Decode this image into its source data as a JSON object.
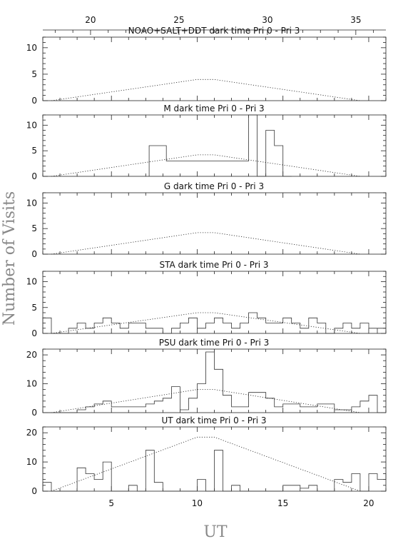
{
  "chart_data": {
    "type": "bar",
    "ylabel": "Number of Visits",
    "xlabel": "UT",
    "x_range": [
      1,
      21
    ],
    "top_axis": {
      "ticks": [
        20,
        25,
        30,
        35
      ],
      "range": [
        17.3,
        36.7
      ]
    },
    "bottom_ticks": [
      5,
      10,
      15,
      20
    ],
    "bin_width": 0.5,
    "panels": [
      {
        "title": "NOAO+SALT+DDT dark time Pri 0 - Pri 3",
        "ylim": [
          0,
          12
        ],
        "yticks": [
          0,
          5,
          10
        ],
        "reference_line": [
          [
            1.5,
            0
          ],
          [
            10,
            4
          ],
          [
            11,
            4
          ],
          [
            19.5,
            0
          ]
        ],
        "bins": []
      },
      {
        "title": "M    dark time Pri 0 - Pri 3",
        "ylim": [
          0,
          12
        ],
        "yticks": [
          0,
          5,
          10
        ],
        "reference_line": [
          [
            1.5,
            0
          ],
          [
            10,
            4.2
          ],
          [
            11,
            4.2
          ],
          [
            19.5,
            0
          ]
        ],
        "bins": [
          [
            7.2,
            6
          ],
          [
            8.2,
            3
          ],
          [
            13,
            12
          ],
          [
            13.5,
            0
          ],
          [
            14,
            9
          ],
          [
            14.5,
            6
          ],
          [
            15,
            0
          ]
        ]
      },
      {
        "title": "G    dark time Pri 0 - Pri 3",
        "ylim": [
          0,
          12
        ],
        "yticks": [
          0,
          5,
          10
        ],
        "reference_line": [
          [
            1.5,
            0
          ],
          [
            10,
            4.2
          ],
          [
            11,
            4.2
          ],
          [
            19.5,
            0
          ]
        ],
        "bins": []
      },
      {
        "title": "STA    dark time Pri 0 - Pri 3",
        "ylim": [
          0,
          12
        ],
        "yticks": [
          0,
          5,
          10
        ],
        "reference_line": [
          [
            1.5,
            0
          ],
          [
            10,
            4
          ],
          [
            11,
            4
          ],
          [
            19.5,
            0
          ]
        ],
        "bins": [
          [
            1,
            3
          ],
          [
            1.5,
            0
          ],
          [
            2.5,
            1
          ],
          [
            3,
            2
          ],
          [
            3.5,
            1
          ],
          [
            4,
            2
          ],
          [
            4.5,
            3
          ],
          [
            5,
            2
          ],
          [
            5.5,
            1
          ],
          [
            6,
            2
          ],
          [
            7,
            1
          ],
          [
            8,
            0
          ],
          [
            8.5,
            1
          ],
          [
            9,
            2
          ],
          [
            9.5,
            3
          ],
          [
            10,
            1
          ],
          [
            10.5,
            2
          ],
          [
            11,
            3
          ],
          [
            11.5,
            2
          ],
          [
            12,
            1
          ],
          [
            12.5,
            2
          ],
          [
            13,
            4
          ],
          [
            13.5,
            3
          ],
          [
            14,
            2
          ],
          [
            15,
            3
          ],
          [
            15.5,
            2
          ],
          [
            16,
            1
          ],
          [
            16.5,
            3
          ],
          [
            17,
            2
          ],
          [
            17.5,
            0
          ],
          [
            18,
            1
          ],
          [
            18.5,
            2
          ],
          [
            19,
            1
          ],
          [
            19.5,
            2
          ],
          [
            20,
            1
          ],
          [
            20.5,
            0
          ],
          [
            20.5,
            1
          ]
        ]
      },
      {
        "title": "PSU    dark time Pri 0 - Pri 3",
        "ylim": [
          0,
          22
        ],
        "yticks": [
          0,
          10,
          20
        ],
        "reference_line": [
          [
            1.5,
            0
          ],
          [
            10,
            8
          ],
          [
            11,
            8
          ],
          [
            19.5,
            0
          ]
        ],
        "bins": [
          [
            1,
            0
          ],
          [
            3,
            1
          ],
          [
            3.5,
            2
          ],
          [
            4,
            3
          ],
          [
            4.5,
            4
          ],
          [
            5,
            2
          ],
          [
            6,
            2
          ],
          [
            7,
            3
          ],
          [
            7.5,
            4
          ],
          [
            8,
            5
          ],
          [
            8.5,
            9
          ],
          [
            9,
            1
          ],
          [
            9.5,
            5
          ],
          [
            10,
            10
          ],
          [
            10.5,
            21
          ],
          [
            11,
            15
          ],
          [
            11.5,
            6
          ],
          [
            12,
            2
          ],
          [
            13,
            7
          ],
          [
            14,
            5
          ],
          [
            14.5,
            2
          ],
          [
            15,
            3
          ],
          [
            16,
            2
          ],
          [
            17,
            3
          ],
          [
            18,
            1
          ],
          [
            19,
            2
          ],
          [
            19.5,
            4
          ],
          [
            20,
            6
          ],
          [
            20.5,
            0
          ]
        ]
      },
      {
        "title": "UT    dark time Pri 0 - Pri 3",
        "ylim": [
          0,
          22
        ],
        "yticks": [
          0,
          10,
          20
        ],
        "reference_line": [
          [
            1.5,
            0
          ],
          [
            10,
            18.5
          ],
          [
            11,
            18.5
          ],
          [
            19.5,
            0
          ]
        ],
        "bins": [
          [
            1,
            3
          ],
          [
            1.5,
            0
          ],
          [
            3,
            8
          ],
          [
            3.5,
            6
          ],
          [
            4,
            4
          ],
          [
            4.5,
            10
          ],
          [
            5,
            0
          ],
          [
            6,
            2
          ],
          [
            6.5,
            0
          ],
          [
            7,
            14
          ],
          [
            7.5,
            3
          ],
          [
            8,
            0
          ],
          [
            10,
            4
          ],
          [
            10.5,
            0
          ],
          [
            11,
            14
          ],
          [
            11.5,
            0
          ],
          [
            12,
            2
          ],
          [
            12.5,
            0
          ],
          [
            15,
            2
          ],
          [
            16,
            1
          ],
          [
            16.5,
            2
          ],
          [
            17,
            0
          ],
          [
            18,
            4
          ],
          [
            18.5,
            3
          ],
          [
            19,
            6
          ],
          [
            19.5,
            0
          ],
          [
            20,
            6
          ],
          [
            20.5,
            4
          ],
          [
            21,
            6
          ]
        ]
      }
    ]
  }
}
